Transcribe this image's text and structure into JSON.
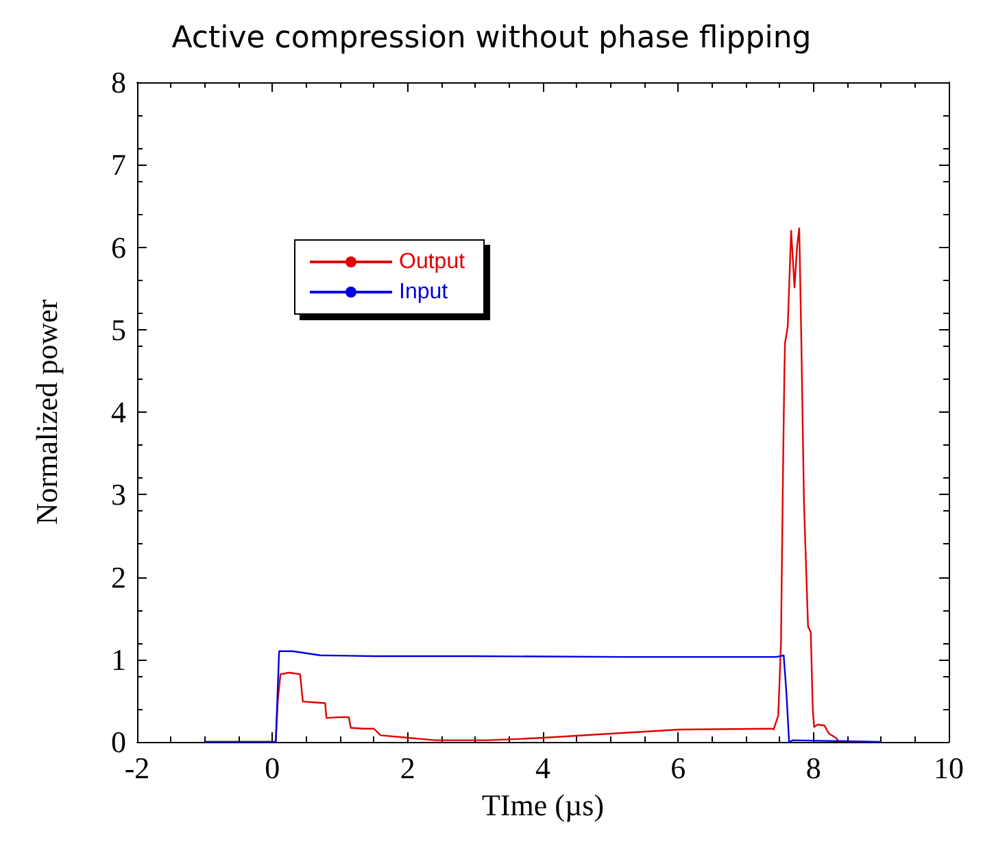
{
  "chart_data": {
    "type": "line",
    "title": "Active compression without phase flipping",
    "xlabel": "TIme (µs)",
    "ylabel": "Normalized power",
    "xlim": [
      -2,
      10
    ],
    "xticks": [
      -2,
      0,
      2,
      4,
      6,
      8,
      10
    ],
    "ylim": [
      0,
      8
    ],
    "yticks": [
      0,
      1,
      2,
      3,
      4,
      5,
      6,
      7,
      8
    ],
    "grid": false,
    "legend": "top left",
    "marker": "none",
    "line_style": "solid",
    "series": [
      {
        "name": "Output",
        "color": "#e00000",
        "x": [
          -1,
          0.05,
          0.08,
          0.12,
          0.25,
          0.41,
          0.45,
          0.6,
          0.78,
          0.8,
          1.0,
          1.13,
          1.16,
          1.35,
          1.5,
          1.6,
          1.87,
          2.41,
          3.16,
          3.5,
          4.0,
          5.0,
          6.02,
          7.38,
          7.41,
          7.48,
          7.52,
          7.55,
          7.57,
          7.58,
          7.62,
          7.67,
          7.72,
          7.76,
          7.79,
          7.82,
          7.86,
          7.92,
          7.96,
          7.99,
          8.01,
          8.06,
          8.16,
          8.23,
          8.33,
          8.37,
          8.74
        ],
        "values": [
          0,
          0,
          0.5,
          0.82,
          0.84,
          0.82,
          0.49,
          0.48,
          0.47,
          0.29,
          0.3,
          0.3,
          0.17,
          0.16,
          0.16,
          0.08,
          0.06,
          0.02,
          0.02,
          0.03,
          0.05,
          0.1,
          0.15,
          0.16,
          0.15,
          0.32,
          1.21,
          3.29,
          4.48,
          4.84,
          5.04,
          6.2,
          5.51,
          6.03,
          6.23,
          4.9,
          2.9,
          1.4,
          1.33,
          0.4,
          0.18,
          0.21,
          0.2,
          0.1,
          0.05,
          0.01,
          0
        ]
      },
      {
        "name": "Input",
        "color": "#0000e0",
        "x": [
          -1,
          0.05,
          0.1,
          0.3,
          0.71,
          1.5,
          3.0,
          5.2,
          6.5,
          7.45,
          7.56,
          7.6,
          7.64,
          7.7,
          9.0
        ],
        "values": [
          0,
          0,
          1.1,
          1.1,
          1.05,
          1.04,
          1.04,
          1.03,
          1.03,
          1.03,
          1.05,
          0.6,
          0,
          0.02,
          0
        ]
      }
    ]
  }
}
